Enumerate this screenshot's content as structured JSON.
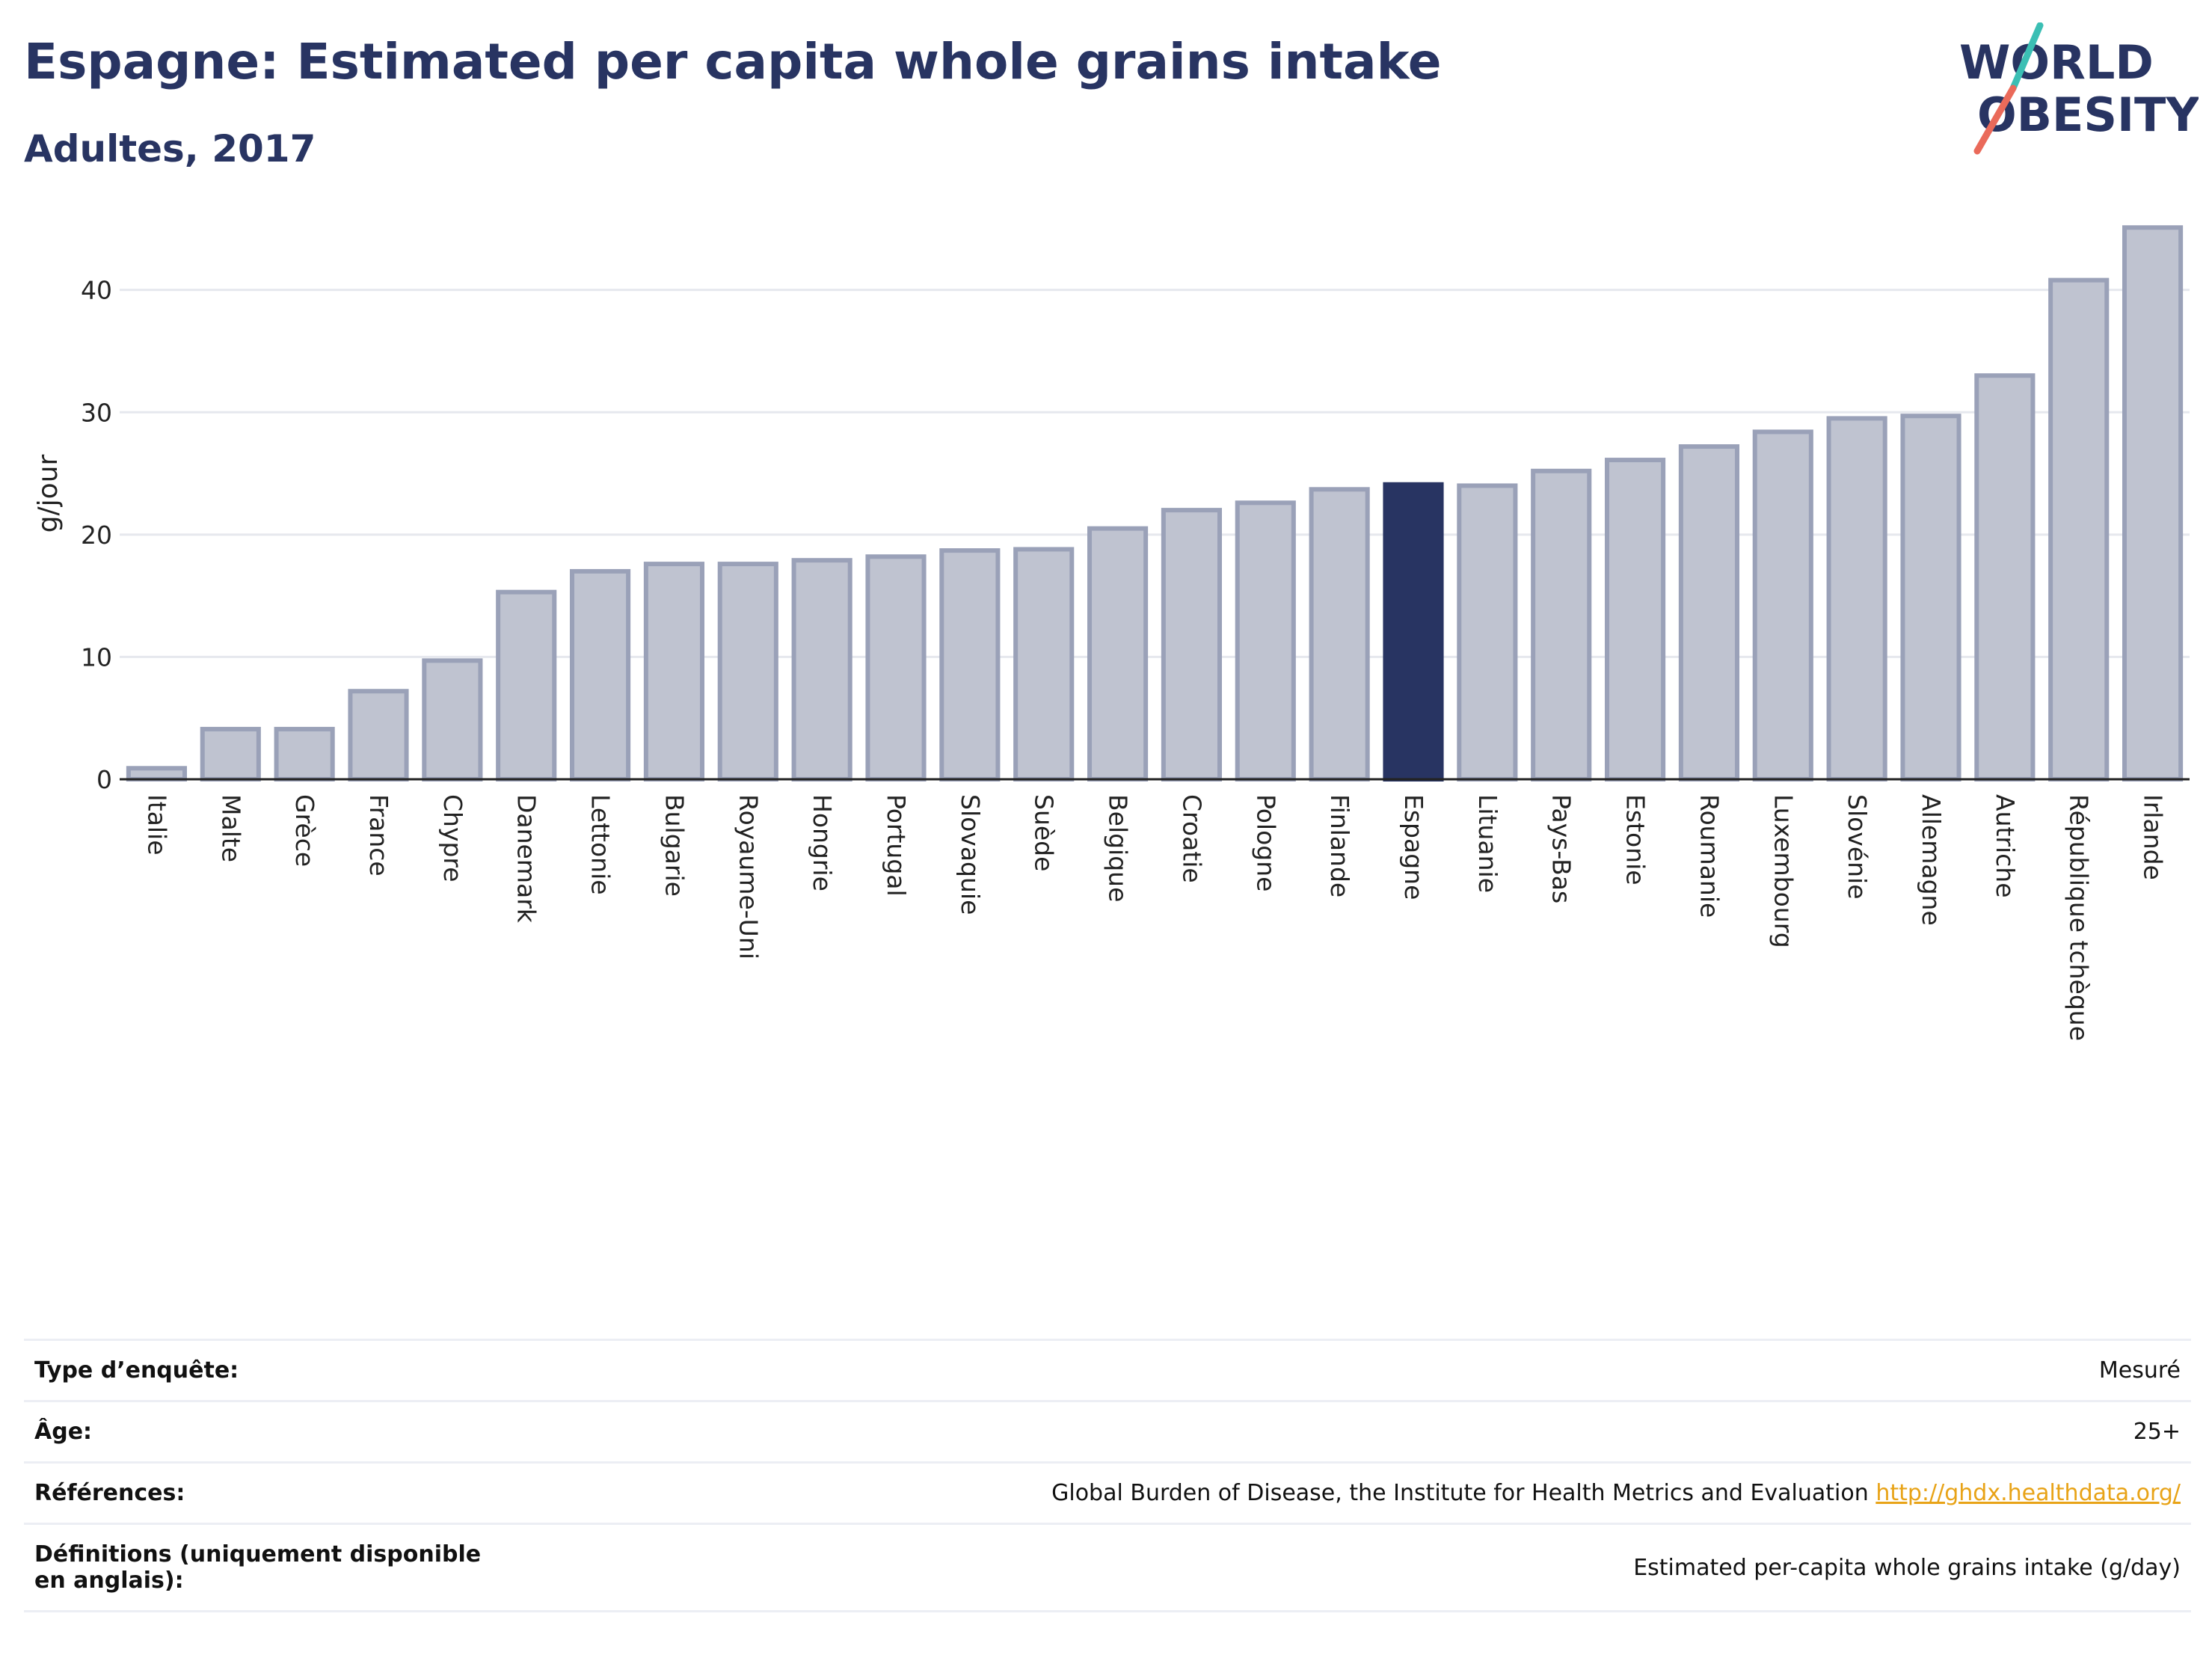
{
  "header": {
    "title": "Espagne: Estimated per capita whole grains intake",
    "subtitle": "Adultes, 2017"
  },
  "logo": {
    "line1": "WORLD",
    "line2": "OBESITY",
    "accent_teal": "#3bbfb4",
    "accent_coral": "#ea6a5a",
    "text_color": "#283462"
  },
  "chart_data": {
    "type": "bar",
    "title": "Espagne: Estimated per capita whole grains intake",
    "subtitle": "Adultes, 2017",
    "ylabel": "g/jour",
    "xlabel": "",
    "ylim": [
      0,
      47.5
    ],
    "yticks": [
      0,
      10,
      20,
      30,
      40
    ],
    "grid": true,
    "highlight": "Espagne",
    "colors": {
      "bar": "#bfc3d0",
      "bar_border": "#9aa1b8",
      "highlight": "#283462"
    },
    "categories": [
      "Italie",
      "Malte",
      "Grèce",
      "France",
      "Chypre",
      "Danemark",
      "Lettonie",
      "Bulgarie",
      "Royaume-Uni",
      "Hongrie",
      "Portugal",
      "Slovaquie",
      "Suède",
      "Belgique",
      "Croatie",
      "Pologne",
      "Finlande",
      "Espagne",
      "Lituanie",
      "Pays-Bas",
      "Estonie",
      "Roumanie",
      "Luxembourg",
      "Slovénie",
      "Allemagne",
      "Autriche",
      "République tchèque",
      "Irlande"
    ],
    "values": [
      0.9,
      4.1,
      4.1,
      7.2,
      9.7,
      15.3,
      17.0,
      17.6,
      17.6,
      17.9,
      18.2,
      18.7,
      18.8,
      20.5,
      22.0,
      22.6,
      23.7,
      24.1,
      24.0,
      25.2,
      26.1,
      27.2,
      28.4,
      29.5,
      29.7,
      33.0,
      40.8,
      45.1
    ]
  },
  "info": {
    "rows": [
      {
        "label": "Type d’enquête:",
        "value": "Mesuré"
      },
      {
        "label": "Âge:",
        "value": "25+"
      },
      {
        "label": "Références:",
        "value": "Global Burden of Disease, the Institute for Health Metrics and Evaluation",
        "link": "http://ghdx.healthdata.org/"
      },
      {
        "label": "Définitions (uniquement disponible en anglais):",
        "value": "Estimated per-capita whole grains intake (g/day)"
      }
    ]
  }
}
